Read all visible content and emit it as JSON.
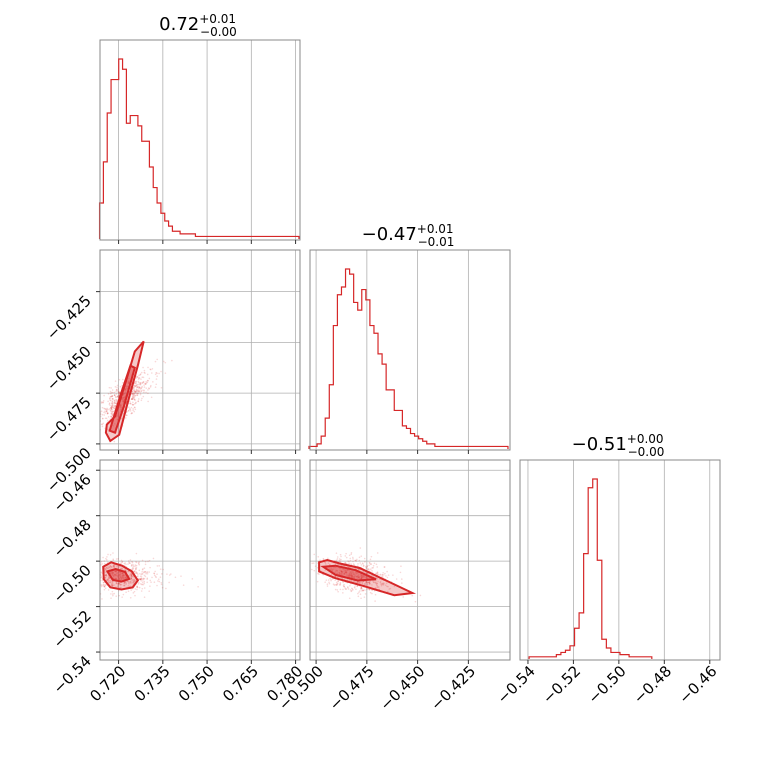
{
  "chart_data": {
    "type": "corner",
    "color": "#d62728",
    "params": [
      {
        "median": 0.72,
        "err_plus": 0.01,
        "err_minus": 0.0,
        "title_main": "0.72",
        "title_sup": "+0.01",
        "title_sub": "−0.00",
        "range": [
          0.7137,
          0.7815
        ],
        "ticks": [
          0.72,
          0.735,
          0.75,
          0.765,
          0.78
        ],
        "tick_labels": [
          "0.720",
          "0.735",
          "0.750",
          "0.765",
          "0.780"
        ]
      },
      {
        "median": -0.47,
        "err_plus": 0.01,
        "err_minus": 0.01,
        "title_main": "−0.47",
        "title_sup": "+0.01",
        "title_sub": "−0.01",
        "range": [
          -0.503,
          -0.4045
        ],
        "ticks": [
          -0.5,
          -0.475,
          -0.45,
          -0.425
        ],
        "tick_labels": [
          "−0.500",
          "−0.475",
          "−0.450",
          "−0.425"
        ]
      },
      {
        "median": -0.51,
        "err_plus": 0.0,
        "err_minus": 0.0,
        "title_main": "−0.51",
        "title_sup": "+0.00",
        "title_sub": "−0.00",
        "range": [
          -0.5435,
          -0.4555
        ],
        "ticks": [
          -0.54,
          -0.52,
          -0.5,
          -0.48,
          -0.46
        ],
        "tick_labels": [
          "−0.54",
          "−0.52",
          "−0.50",
          "−0.48",
          "−0.46"
        ]
      }
    ],
    "hist1d": [
      {
        "x": [
          0.7142,
          0.7155,
          0.7168,
          0.7181,
          0.7194,
          0.7207,
          0.722,
          0.7233,
          0.7246,
          0.7259,
          0.7272,
          0.7285,
          0.7298,
          0.7311,
          0.7324,
          0.7337,
          0.735,
          0.7363,
          0.7376,
          0.7389,
          0.7402,
          0.7415,
          0.7428,
          0.7441,
          0.7454,
          0.7467,
          0.748,
          0.7493,
          0.7506,
          0.7519,
          0.7532,
          0.7545,
          0.7558,
          0.7571,
          0.7584,
          0.7597,
          0.761,
          0.7623,
          0.7636,
          0.7649,
          0.7662,
          0.7675,
          0.7688,
          0.7701,
          0.7714,
          0.7727,
          0.774,
          0.7753,
          0.7766,
          0.7779,
          0.7792,
          0.7805
        ],
        "counts": [
          14,
          30,
          49,
          62,
          62,
          70,
          66,
          45,
          48,
          48,
          44,
          38,
          38,
          28,
          20,
          14,
          10,
          7,
          5,
          3,
          3,
          2,
          2,
          2,
          2,
          1,
          1,
          1,
          1,
          1,
          1,
          1,
          1,
          1,
          1,
          1,
          1,
          1,
          1,
          1,
          1,
          1,
          1,
          1,
          1,
          1,
          1,
          1,
          1,
          1,
          1,
          1
        ]
      },
      {
        "x": [
          -0.5025,
          -0.5005,
          -0.4985,
          -0.4965,
          -0.4945,
          -0.4925,
          -0.4905,
          -0.4885,
          -0.4865,
          -0.4845,
          -0.4825,
          -0.4805,
          -0.4785,
          -0.4765,
          -0.4745,
          -0.4725,
          -0.4705,
          -0.4685,
          -0.4665,
          -0.4645,
          -0.4625,
          -0.4605,
          -0.4585,
          -0.4565,
          -0.4545,
          -0.4525,
          -0.4505,
          -0.4485,
          -0.4465,
          -0.4445,
          -0.4425,
          -0.4405,
          -0.4385,
          -0.4365,
          -0.4345,
          -0.4325,
          -0.4305,
          -0.4285,
          -0.4265,
          -0.4245,
          -0.4225,
          -0.4205,
          -0.4185,
          -0.4165,
          -0.4145,
          -0.4125,
          -0.4105,
          -0.4085,
          -0.4065
        ],
        "counts": [
          1,
          1,
          2,
          5,
          12,
          25,
          48,
          60,
          63,
          70,
          68,
          57,
          54,
          62,
          58,
          48,
          45,
          37,
          33,
          23,
          23,
          15,
          15,
          9,
          8,
          6,
          5,
          4,
          3,
          2,
          2,
          1,
          1,
          1,
          1,
          1,
          1,
          1,
          1,
          1,
          1,
          1,
          1,
          1,
          1,
          1,
          1,
          1,
          1
        ]
      },
      {
        "x": [
          -0.5385,
          -0.5365,
          -0.5345,
          -0.5325,
          -0.5305,
          -0.5285,
          -0.5265,
          -0.5245,
          -0.5225,
          -0.5205,
          -0.5185,
          -0.5165,
          -0.5145,
          -0.5125,
          -0.5105,
          -0.5085,
          -0.5065,
          -0.5045,
          -0.5025,
          -0.5005,
          -0.4985,
          -0.4965,
          -0.4945,
          -0.4925,
          -0.4905,
          -0.4885,
          -0.4865
        ],
        "counts": [
          1,
          1,
          1,
          1,
          1,
          1,
          2,
          3,
          4,
          6,
          14,
          21,
          48,
          78,
          82,
          45,
          9,
          5,
          3,
          3,
          2,
          2,
          1,
          1,
          1,
          1,
          1
        ]
      }
    ],
    "pairs": [
      {
        "xi": 0,
        "yi": 1,
        "slope": 1.0,
        "scatter_spread": [
          0.0035,
          0.0045
        ],
        "contours": [
          [
            [
              0.7157,
              -0.4945
            ],
            [
              0.7172,
              -0.4985
            ],
            [
              0.7202,
              -0.4955
            ],
            [
              0.7235,
              -0.4775
            ],
            [
              0.7265,
              -0.4615
            ],
            [
              0.7285,
              -0.4495
            ],
            [
              0.7255,
              -0.4545
            ],
            [
              0.7222,
              -0.4705
            ],
            [
              0.7188,
              -0.4865
            ],
            [
              0.716,
              -0.4905
            ]
          ],
          [
            [
              0.717,
              -0.4935
            ],
            [
              0.7188,
              -0.4945
            ],
            [
              0.7218,
              -0.4815
            ],
            [
              0.7255,
              -0.4625
            ],
            [
              0.724,
              -0.4615
            ],
            [
              0.721,
              -0.4745
            ],
            [
              0.718,
              -0.4885
            ]
          ]
        ]
      },
      {
        "xi": 0,
        "yi": 2,
        "slope": 0.0,
        "scatter_spread": [
          0.0045,
          0.0035
        ],
        "contours": [
          [
            [
              0.7148,
              -0.5025
            ],
            [
              0.7175,
              -0.5005
            ],
            [
              0.7212,
              -0.502
            ],
            [
              0.7245,
              -0.5045
            ],
            [
              0.7265,
              -0.5085
            ],
            [
              0.7248,
              -0.5115
            ],
            [
              0.721,
              -0.5125
            ],
            [
              0.7172,
              -0.5115
            ],
            [
              0.715,
              -0.508
            ]
          ],
          [
            [
              0.7162,
              -0.5045
            ],
            [
              0.719,
              -0.5035
            ],
            [
              0.7222,
              -0.5048
            ],
            [
              0.7236,
              -0.5078
            ],
            [
              0.721,
              -0.509
            ],
            [
              0.718,
              -0.5082
            ]
          ]
        ]
      },
      {
        "xi": 1,
        "yi": 2,
        "slope": -0.14,
        "scatter_spread": [
          0.006,
          0.0035
        ],
        "contours": [
          [
            [
              -0.4985,
              -0.5005
            ],
            [
              -0.4945,
              -0.4995
            ],
            [
              -0.4885,
              -0.501
            ],
            [
              -0.4785,
              -0.503
            ],
            [
              -0.4655,
              -0.5085
            ],
            [
              -0.4525,
              -0.514
            ],
            [
              -0.4615,
              -0.515
            ],
            [
              -0.4765,
              -0.511
            ],
            [
              -0.4905,
              -0.5075
            ],
            [
              -0.4985,
              -0.5045
            ]
          ],
          [
            [
              -0.4965,
              -0.5025
            ],
            [
              -0.4905,
              -0.502
            ],
            [
              -0.4805,
              -0.504
            ],
            [
              -0.4705,
              -0.508
            ],
            [
              -0.4795,
              -0.5085
            ],
            [
              -0.4905,
              -0.506
            ]
          ]
        ]
      }
    ],
    "grid": true
  }
}
